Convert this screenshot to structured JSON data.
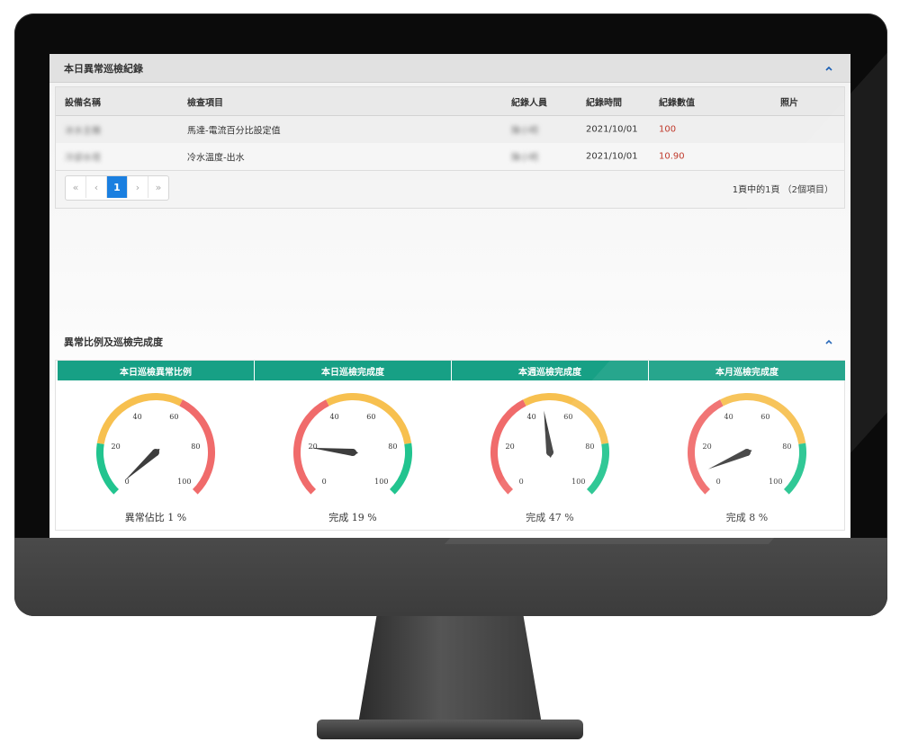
{
  "panel1": {
    "title": "本日異常巡檢紀錄",
    "columns": [
      "設備名稱",
      "檢查項目",
      "紀錄人員",
      "紀錄時間",
      "紀錄數值",
      "照片"
    ],
    "rows": [
      {
        "device": "冰水主機",
        "item": "馬達-電流百分比設定值",
        "recorder": "陳小明",
        "time": "2021/10/01",
        "value": "100",
        "photo": ""
      },
      {
        "device": "冷卻水塔",
        "item": "冷水溫度-出水",
        "recorder": "陳小明",
        "time": "2021/10/01",
        "value": "10.90",
        "photo": ""
      }
    ],
    "pagination": {
      "first": "«",
      "prev": "‹",
      "current": "1",
      "next": "›",
      "last": "»",
      "info": "1頁中的1頁 （2個項目）"
    }
  },
  "panel2": {
    "title": "異常比例及巡檢完成度",
    "gauges": [
      {
        "title": "本日巡檢異常比例",
        "label": "異常佔比 1 %",
        "value": 1
      },
      {
        "title": "本日巡檢完成度",
        "label": "完成 19 %",
        "value": 19
      },
      {
        "title": "本週巡檢完成度",
        "label": "完成 47 %",
        "value": 47
      },
      {
        "title": "本月巡檢完成度",
        "label": "完成 8 %",
        "value": 8
      }
    ],
    "tick_labels": [
      "0",
      "20",
      "40",
      "60",
      "80",
      "100"
    ],
    "colors": {
      "low": "#f06b6b",
      "mid": "#f7c04f",
      "high": "#22c48f",
      "needle": "#3d3d3d",
      "header": "#17a085"
    }
  }
}
